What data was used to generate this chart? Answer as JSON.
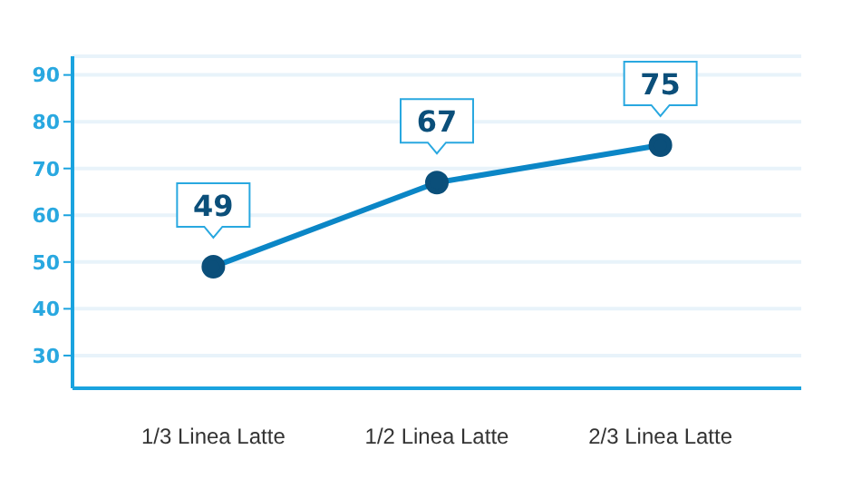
{
  "chart_data": {
    "type": "line",
    "categories": [
      "1/3 Linea Latte",
      "1/2 Linea Latte",
      "2/3 Linea Latte"
    ],
    "series": [
      {
        "color": "#0b86c6",
        "values": [
          49,
          67,
          75
        ]
      }
    ],
    "ylim": [
      23,
      94
    ],
    "yticks": [
      30,
      40,
      50,
      60,
      70,
      80,
      90
    ],
    "grid": "y",
    "marker": "circle",
    "line_style": "solid",
    "data_labels": true,
    "legend": false
  }
}
